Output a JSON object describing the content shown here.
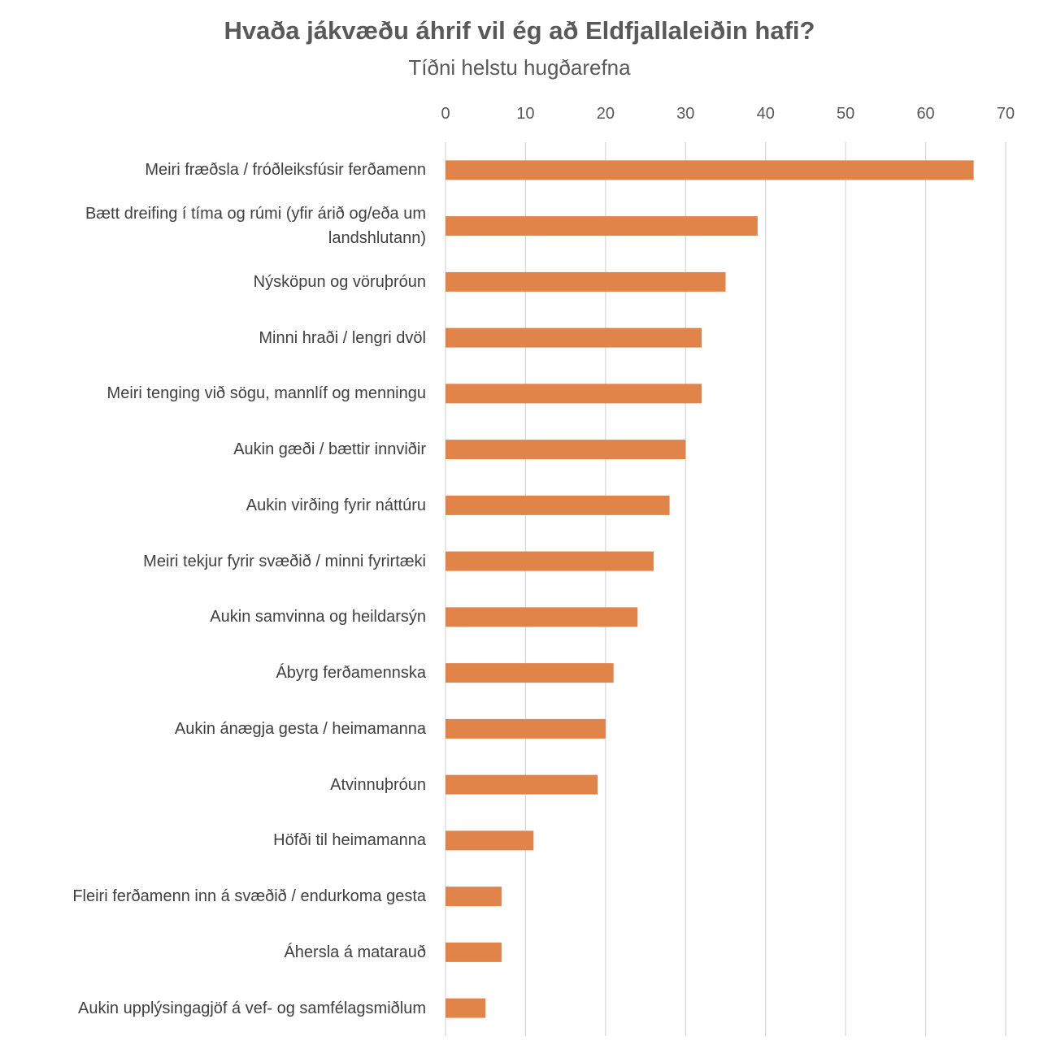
{
  "chart_data": {
    "type": "bar",
    "orientation": "horizontal",
    "title": "Hvaða jákvæðu áhrif vil ég að Eldfjallaleiðin hafi?",
    "subtitle": "Tíðni helstu hugðarefna",
    "xlabel": "",
    "ylabel": "",
    "xlim": [
      0,
      70
    ],
    "ticks": [
      "0",
      "10",
      "20",
      "30",
      "40",
      "50",
      "60",
      "70"
    ],
    "grid": true,
    "legend": "none",
    "bar_color": "#E0844A",
    "categories": [
      "Meiri fræðsla / fróðleiksfúsir ferðamenn",
      "Bætt dreifing í tíma og rúmi (yfir árið og/eða um landshlutann)",
      "Nýsköpun og vöruþróun",
      "Minni hraði / lengri dvöl",
      "Meiri tenging við sögu, mannlíf og menningu",
      "Aukin gæði / bættir innviðir",
      "Aukin virðing fyrir náttúru",
      "Meiri tekjur fyrir svæðið / minni fyrirtæki",
      "Aukin samvinna og heildarsýn",
      "Ábyrg ferðamennska",
      "Aukin ánægja gesta / heimamanna",
      "Atvinnuþróun",
      "Höfði til heimamanna",
      "Fleiri ferðamenn inn á svæðið / endurkoma gesta",
      "Áhersla á matarauð",
      "Aukin upplýsingagjöf á vef- og samfélagsmiðlum"
    ],
    "values": [
      66,
      39,
      35,
      32,
      32,
      30,
      28,
      26,
      24,
      21,
      20,
      19,
      11,
      7,
      7,
      5
    ]
  }
}
